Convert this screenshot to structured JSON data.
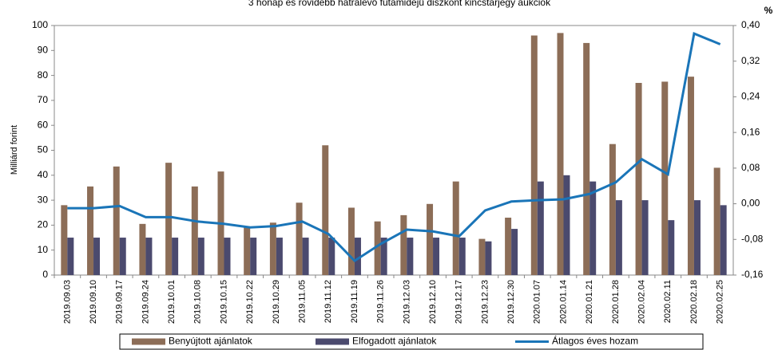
{
  "chart_data": {
    "type": "bar_line",
    "title": "3 hónap és rövidebb hátralévő futamidejű diszkont kincstárjegy aukciók",
    "ylabel": "Milliárd forint",
    "y2label": "%",
    "categories": [
      "2019.09.03",
      "2019.09.10",
      "2019.09.17",
      "2019.09.24",
      "2019.10.01",
      "2019.10.08",
      "2019.10.15",
      "2019.10.22",
      "2019.10.29",
      "2019.11.05",
      "2019.11.12",
      "2019.11.19",
      "2019.11.26",
      "2019.12.03",
      "2019.12.10",
      "2019.12.17",
      "2019.12.23",
      "2019.12.30",
      "2020.01.07",
      "2020.01.14",
      "2020.01.21",
      "2020.01.28",
      "2020.02.04",
      "2020.02.11",
      "2020.02.18",
      "2020.02.25"
    ],
    "series": [
      {
        "name": "Benyújtott ajánlatok",
        "type": "bar",
        "color": "#8c6d57",
        "values": [
          28,
          35.5,
          43.5,
          20.5,
          45,
          35.5,
          41.5,
          19.5,
          21,
          29,
          52,
          27,
          21.5,
          24,
          28.5,
          37.5,
          14.5,
          23,
          96,
          97,
          93,
          52.5,
          77,
          77.5,
          79.5,
          43
        ]
      },
      {
        "name": "Elfogadott ajánlatok",
        "type": "bar",
        "color": "#4b4a6e",
        "values": [
          15,
          15,
          15,
          15,
          15,
          15,
          15,
          15,
          15,
          15,
          15,
          15,
          15,
          15,
          15,
          15,
          13.5,
          18.5,
          37.5,
          40,
          37.5,
          30,
          30,
          22,
          30,
          28
        ]
      },
      {
        "name": "Átlagos éves hozam",
        "type": "line",
        "axis": "y2",
        "color": "#1a75b8",
        "values": [
          -0.01,
          -0.01,
          -0.005,
          -0.03,
          -0.03,
          -0.04,
          -0.045,
          -0.053,
          -0.05,
          -0.04,
          -0.068,
          -0.128,
          -0.09,
          -0.058,
          -0.062,
          -0.073,
          -0.015,
          0.005,
          0.008,
          0.01,
          0.022,
          0.048,
          0.1,
          0.066,
          0.382,
          0.358
        ]
      }
    ],
    "ylim": [
      0,
      100
    ],
    "yticks": [
      0,
      10,
      20,
      30,
      40,
      50,
      60,
      70,
      80,
      90,
      100
    ],
    "y2lim": [
      -0.16,
      0.4
    ],
    "y2ticks": [
      {
        "value": -0.16,
        "label": "-0,16"
      },
      {
        "value": -0.08,
        "label": "-0,08"
      },
      {
        "value": 0,
        "label": "0,00"
      },
      {
        "value": 0.08,
        "label": "0,08"
      },
      {
        "value": 0.16,
        "label": "0,16"
      },
      {
        "value": 0.24,
        "label": "0,24"
      },
      {
        "value": 0.32,
        "label": "0,32"
      },
      {
        "value": 0.4,
        "label": "0,40"
      }
    ],
    "grid": false,
    "legend": "bottom"
  }
}
